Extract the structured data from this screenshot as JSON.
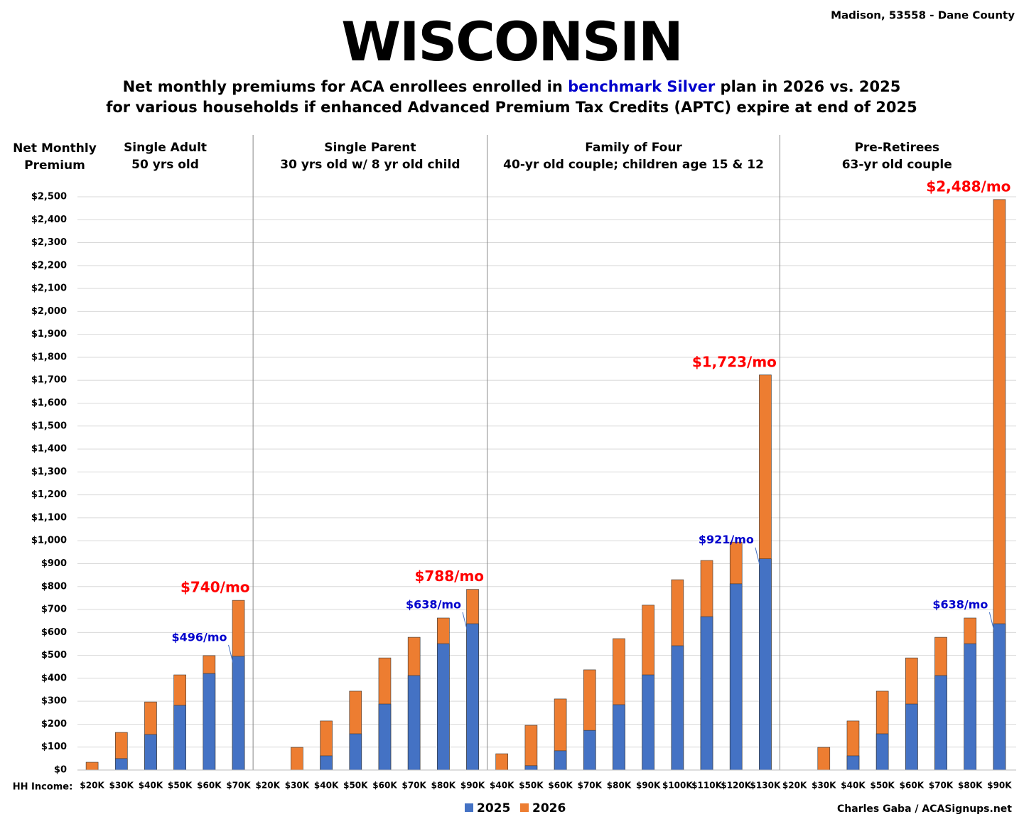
{
  "chart_data": {
    "type": "bar",
    "title": "WISCONSIN",
    "location": "Madison, 53558 - Dane County",
    "subtitle_parts": [
      "Net monthly premiums for ACA enrollees enrolled in ",
      "benchmark Silver",
      " plan in 2026 vs. 2025"
    ],
    "subtitle_line2": "for various households if enhanced Advanced Premium Tax Credits (APTC) expire at end of 2025",
    "ylabel": [
      "Net Monthly",
      "Premium"
    ],
    "xlabel": "HH Income:",
    "credit": "Charles Gaba / ACASignups.net",
    "ylim": [
      0,
      2500
    ],
    "yticks": [
      {
        "value": 0,
        "label": "$0"
      },
      {
        "value": 100,
        "label": "$100"
      },
      {
        "value": 200,
        "label": "$200"
      },
      {
        "value": 300,
        "label": "$300"
      },
      {
        "value": 400,
        "label": "$400"
      },
      {
        "value": 500,
        "label": "$500"
      },
      {
        "value": 600,
        "label": "$600"
      },
      {
        "value": 700,
        "label": "$700"
      },
      {
        "value": 800,
        "label": "$800"
      },
      {
        "value": 900,
        "label": "$900"
      },
      {
        "value": 1000,
        "label": "$1,000"
      },
      {
        "value": 1100,
        "label": "$1,100"
      },
      {
        "value": 1200,
        "label": "$1,200"
      },
      {
        "value": 1300,
        "label": "$1,300"
      },
      {
        "value": 1400,
        "label": "$1,400"
      },
      {
        "value": 1500,
        "label": "$1,500"
      },
      {
        "value": 1600,
        "label": "$1,600"
      },
      {
        "value": 1700,
        "label": "$1,700"
      },
      {
        "value": 1800,
        "label": "$1,800"
      },
      {
        "value": 1900,
        "label": "$1,900"
      },
      {
        "value": 2000,
        "label": "$2,000"
      },
      {
        "value": 2100,
        "label": "$2,100"
      },
      {
        "value": 2200,
        "label": "$2,200"
      },
      {
        "value": 2300,
        "label": "$2,300"
      },
      {
        "value": 2400,
        "label": "$2,400"
      },
      {
        "value": 2500,
        "label": "$2,500"
      }
    ],
    "grid": true,
    "legend": "bottom",
    "series": [
      {
        "name": "2025",
        "color": "#4472c4",
        "label_color": "#0000cc"
      },
      {
        "name": "2026",
        "color": "#ed7d31",
        "label_color": "#ff0000"
      }
    ],
    "panels": [
      {
        "title": "Single Adult",
        "subtitle": "50 yrs old",
        "categories": [
          "$20K",
          "$30K",
          "$40K",
          "$50K",
          "$60K",
          "$70K"
        ],
        "series": [
          {
            "values": [
              0,
              50,
              155,
              282,
              421,
              496
            ],
            "value_labels": [
              null,
              null,
              null,
              null,
              null,
              "$496/mo"
            ]
          },
          {
            "values": [
              34,
              164,
              297,
              415,
              499,
              740
            ],
            "value_labels": [
              null,
              null,
              null,
              null,
              null,
              "$740/mo"
            ]
          }
        ]
      },
      {
        "title": "Single Parent",
        "subtitle": "30 yrs old w/ 8 yr old child",
        "categories": [
          "$20K",
          "$30K",
          "$40K",
          "$50K",
          "$60K",
          "$70K",
          "$80K",
          "$90K"
        ],
        "series": [
          {
            "values": [
              0,
              0,
              62,
              158,
              288,
              412,
              551,
              638
            ],
            "value_labels": [
              null,
              null,
              null,
              null,
              null,
              null,
              null,
              "$638/mo"
            ]
          },
          {
            "values": [
              0,
              99,
              214,
              344,
              489,
              579,
              663,
              788
            ],
            "value_labels": [
              null,
              null,
              null,
              null,
              null,
              null,
              null,
              "$788/mo"
            ]
          }
        ]
      },
      {
        "title": "Family of Four",
        "subtitle": "40-yr old couple; children age 15 & 12",
        "categories": [
          "$40K",
          "$50K",
          "$60K",
          "$70K",
          "$80K",
          "$90K",
          "$100K",
          "$110K",
          "$120K",
          "$130K"
        ],
        "series": [
          {
            "values": [
              0,
              19,
              84,
              173,
              285,
              415,
              542,
              669,
              812,
              921
            ],
            "value_labels": [
              null,
              null,
              null,
              null,
              null,
              null,
              null,
              null,
              null,
              "$921/mo"
            ]
          },
          {
            "values": [
              71,
              195,
              310,
              437,
              573,
              719,
              830,
              914,
              994,
              1723
            ],
            "value_labels": [
              null,
              null,
              null,
              null,
              null,
              null,
              null,
              null,
              null,
              "$1,723/mo"
            ]
          }
        ]
      },
      {
        "title": "Pre-Retirees",
        "subtitle": "63-yr old couple",
        "categories": [
          "$20K",
          "$30K",
          "$40K",
          "$50K",
          "$60K",
          "$70K",
          "$80K",
          "$90K"
        ],
        "series": [
          {
            "values": [
              0,
              0,
              62,
              158,
              288,
              412,
              551,
              638
            ],
            "value_labels": [
              null,
              null,
              null,
              null,
              null,
              null,
              null,
              "$638/mo"
            ]
          },
          {
            "values": [
              0,
              99,
              214,
              344,
              489,
              579,
              663,
              2488
            ],
            "value_labels": [
              null,
              null,
              null,
              null,
              null,
              null,
              null,
              "$2,488/mo"
            ]
          }
        ]
      }
    ]
  }
}
